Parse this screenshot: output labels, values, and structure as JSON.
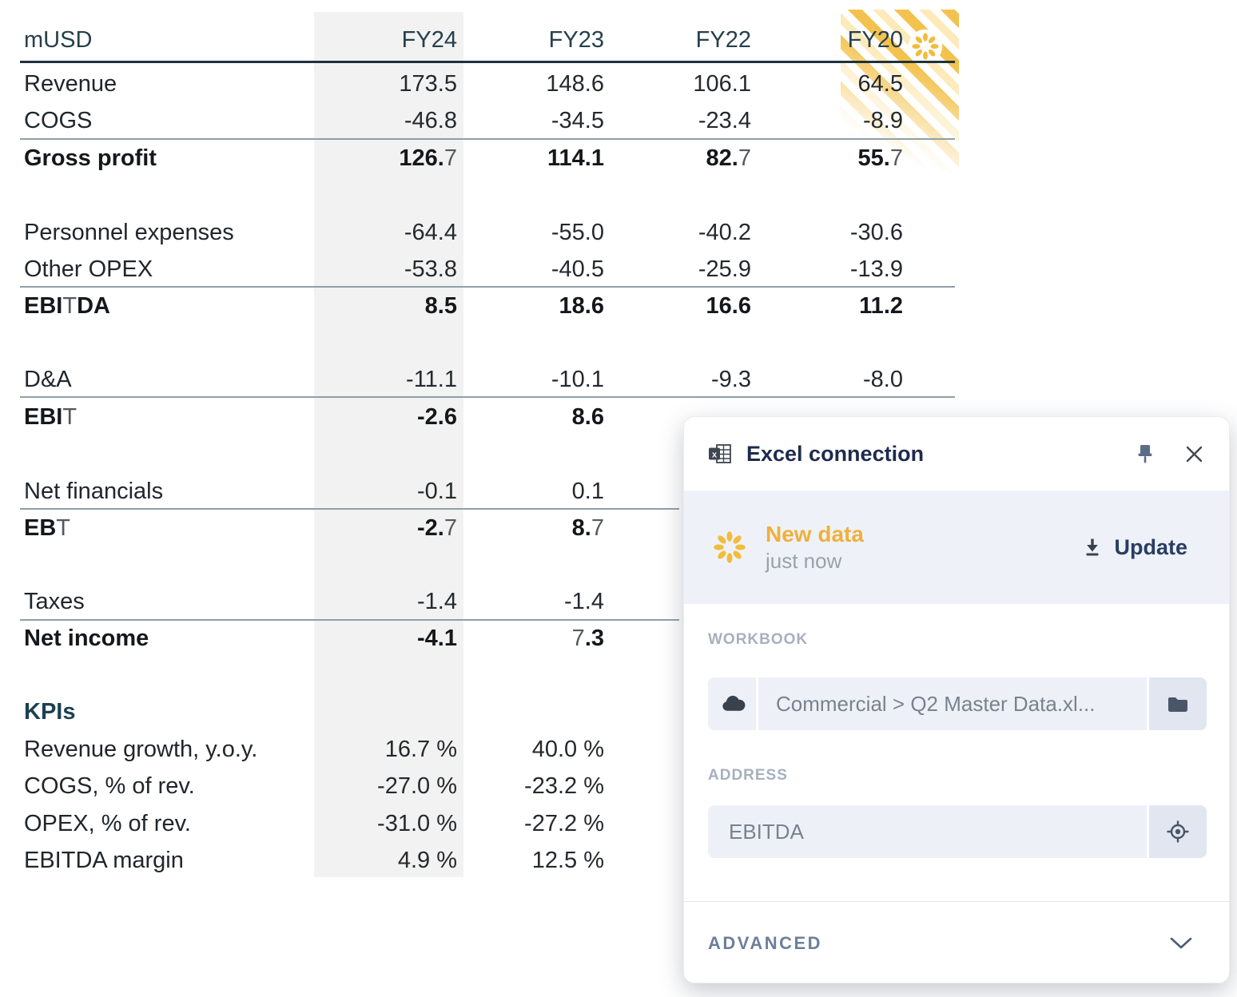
{
  "table": {
    "unit_label": "mUSD",
    "columns": [
      "FY24",
      "FY23",
      "FY22",
      "FY20"
    ],
    "rows": [
      {
        "label": "Revenue",
        "values": [
          "173.5",
          "148.6",
          "106.1",
          "64.5"
        ],
        "bold": false
      },
      {
        "label": "COGS",
        "values": [
          "-46.8",
          "-34.5",
          "-23.4",
          "-8.9"
        ],
        "bold": false
      },
      {
        "label": "Gross profit",
        "values": [
          "126.7",
          "114.1",
          "82.7",
          "55.7"
        ],
        "bold": true
      },
      {
        "label": "Personnel expenses",
        "values": [
          "-64.4",
          "-55.0",
          "-40.2",
          "-30.6"
        ],
        "bold": false
      },
      {
        "label": "Other OPEX",
        "values": [
          "-53.8",
          "-40.5",
          "-25.9",
          "-13.9"
        ],
        "bold": false
      },
      {
        "label": "EBITDA",
        "values": [
          "8.5",
          "18.6",
          "16.6",
          "11.2"
        ],
        "bold": true
      },
      {
        "label": "D&A",
        "values": [
          "-11.1",
          "-10.1",
          "-9.3",
          "-8.0"
        ],
        "bold": false
      },
      {
        "label": "EBIT",
        "values": [
          "-2.6",
          "8.6"
        ],
        "bold": true
      },
      {
        "label": "Net financials",
        "values": [
          "-0.1",
          "0.1"
        ],
        "bold": false
      },
      {
        "label": "EBT",
        "values": [
          "-2.7",
          "8.7"
        ],
        "bold": true
      },
      {
        "label": "Taxes",
        "values": [
          "-1.4",
          "-1.4"
        ],
        "bold": false
      },
      {
        "label": "Net income",
        "values": [
          "-4.1",
          "7.3"
        ],
        "bold": true
      }
    ],
    "kpis": {
      "title": "KPIs",
      "rows": [
        {
          "label": "Revenue growth, y.o.y.",
          "values": [
            "16.7 %",
            "40.0 %"
          ]
        },
        {
          "label": "COGS, % of rev.",
          "values": [
            "-27.0 %",
            "-23.2 %"
          ]
        },
        {
          "label": "OPEX, % of rev.",
          "values": [
            "-31.0 %",
            "-27.2 %"
          ]
        },
        {
          "label": "EBITDA margin",
          "values": [
            "4.9 %",
            "12.5 %"
          ]
        }
      ]
    }
  },
  "panel": {
    "title": "Excel connection",
    "status": {
      "title": "New data",
      "subtitle": "just now",
      "action_label": "Update"
    },
    "workbook": {
      "label": "WORKBOOK",
      "value": "Commercial > Q2 Master Data.xl..."
    },
    "address": {
      "label": "ADDRESS",
      "value": "EBITDA"
    },
    "advanced_label": "ADVANCED"
  },
  "colors": {
    "accent_yellow": "#F2BC3B",
    "new_data_text": "#F0B03A",
    "header_dark": "#26404C",
    "rule_dark": "#1E323D",
    "rule_gray": "#8FA0A6",
    "fy24_band": "#F1F2F1",
    "panel_title": "#1E2B4D",
    "status_band_bg": "#EEF2F8",
    "field_bg": "#EDF1F7",
    "field_button_bg": "#E1E6F0",
    "muted_text": "#79828F",
    "section_label": "#A6B0BE",
    "update_text": "#2A3D62",
    "advanced_text": "#6D7F99"
  }
}
